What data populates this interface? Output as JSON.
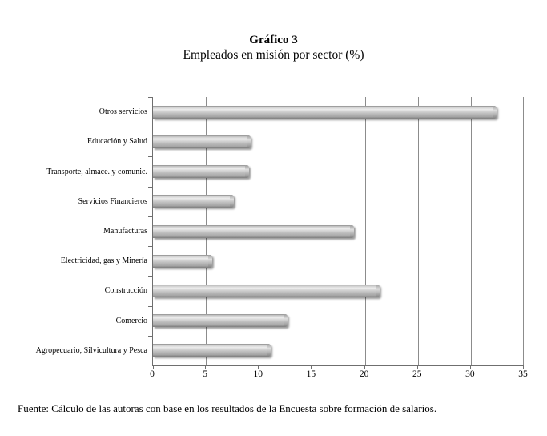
{
  "header": {
    "title": "Gráfico 3",
    "subtitle": "Empleados en misión por sector (%)"
  },
  "footer": {
    "source": "Fuente: Cálculo de las autoras con base en los resultados de la Encuesta sobre formación de salarios."
  },
  "chart_data": {
    "type": "bar",
    "orientation": "horizontal",
    "title": "Gráfico 3",
    "subtitle": "Empleados en misión por sector (%)",
    "categories": [
      "Otros servicios",
      "Educación y Salud",
      "Transporte, almace. y comunic.",
      "Servicios Financieros",
      "Manufacturas",
      "Electricidad, gas y Minería",
      "Construcción",
      "Comercio",
      "Agropecuario, Silvicultura y Pesca"
    ],
    "values": [
      32.4,
      9.2,
      9.1,
      7.6,
      19.0,
      5.6,
      21.4,
      12.7,
      11.1
    ],
    "xlim": [
      0,
      35
    ],
    "xticks": [
      0,
      5,
      10,
      15,
      20,
      25,
      30,
      35
    ],
    "xlabel": "",
    "ylabel": "",
    "grid": true,
    "legend": "none",
    "bar_color": "#c0c0c0",
    "gridline_color": "#8c8c8c",
    "axis_color": "#6f6f6f",
    "source_note": "Fuente: Cálculo de las autoras con base en los resultados de la Encuesta sobre formación de salarios."
  }
}
